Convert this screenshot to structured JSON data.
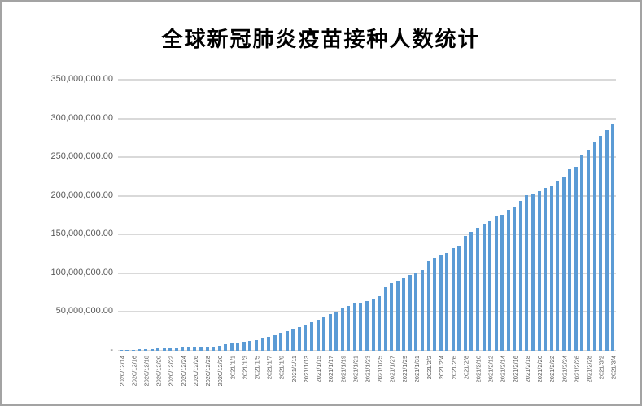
{
  "window": {
    "background_color": "#ffffff",
    "border_color": "#a3a3a3"
  },
  "chart_data": {
    "type": "bar",
    "title": "全球新冠肺炎疫苗接种人数统计",
    "xlabel": "",
    "ylabel": "",
    "ylim": [
      0,
      350000000
    ],
    "y_tick_interval": 50000000,
    "y_tick_labels": [
      "350,000,000.00",
      "300,000,000.00",
      "250,000,000.00",
      "200,000,000.00",
      "150,000,000.00",
      "100,000,000.00",
      "50,000,000.00",
      "-"
    ],
    "x_label_every": 2,
    "grid": "horizontal",
    "legend": "none",
    "bar_color": "#5b9bd5",
    "gridline_color": "#d9d9d9",
    "axis_label_color": "#595959",
    "categories": [
      "2020/12/14",
      "2020/12/15",
      "2020/12/16",
      "2020/12/17",
      "2020/12/18",
      "2020/12/19",
      "2020/12/20",
      "2020/12/21",
      "2020/12/22",
      "2020/12/23",
      "2020/12/24",
      "2020/12/25",
      "2020/12/26",
      "2020/12/27",
      "2020/12/28",
      "2020/12/29",
      "2020/12/30",
      "2020/12/31",
      "2021/1/1",
      "2021/1/2",
      "2021/1/3",
      "2021/1/4",
      "2021/1/5",
      "2021/1/6",
      "2021/1/7",
      "2021/1/8",
      "2021/1/9",
      "2021/1/10",
      "2021/1/11",
      "2021/1/12",
      "2021/1/13",
      "2021/1/14",
      "2021/1/15",
      "2021/1/16",
      "2021/1/17",
      "2021/1/18",
      "2021/1/19",
      "2021/1/20",
      "2021/1/21",
      "2021/1/22",
      "2021/1/23",
      "2021/1/24",
      "2021/1/25",
      "2021/1/26",
      "2021/1/27",
      "2021/1/28",
      "2021/1/29",
      "2021/1/30",
      "2021/1/31",
      "2021/2/1",
      "2021/2/2",
      "2021/2/3",
      "2021/2/4",
      "2021/2/5",
      "2021/2/6",
      "2021/2/7",
      "2021/2/8",
      "2021/2/9",
      "2021/2/10",
      "2021/2/11",
      "2021/2/12",
      "2021/2/13",
      "2021/2/14",
      "2021/2/15",
      "2021/2/16",
      "2021/2/17",
      "2021/2/18",
      "2021/2/19",
      "2021/2/20",
      "2021/2/21",
      "2021/2/22",
      "2021/2/23",
      "2021/2/24",
      "2021/2/25",
      "2021/2/26",
      "2021/2/27",
      "2021/2/28",
      "2021/3/1",
      "2021/3/2",
      "2021/3/3",
      "2021/3/4"
    ],
    "values": [
      600000,
      1000000,
      1500000,
      1900000,
      2300000,
      2600000,
      2900000,
      3100000,
      3300000,
      3600000,
      3900000,
      4100000,
      4300000,
      4600000,
      5000000,
      5800000,
      6800000,
      8000000,
      9300000,
      10500000,
      11700000,
      12700000,
      14000000,
      16000000,
      18000000,
      20500000,
      23000000,
      25500000,
      28000000,
      30500000,
      33000000,
      36500000,
      40000000,
      43500000,
      47000000,
      51000000,
      55000000,
      58000000,
      60500000,
      62500000,
      64500000,
      66000000,
      70500000,
      82000000,
      87000000,
      90500000,
      94000000,
      97500000,
      100000000,
      104000000,
      116000000,
      119500000,
      124000000,
      126000000,
      132500000,
      136000000,
      148000000,
      153000000,
      158500000,
      164000000,
      167000000,
      173500000,
      176000000,
      182000000,
      185500000,
      193500000,
      200500000,
      203000000,
      206000000,
      210000000,
      213500000,
      220000000,
      225000000,
      234500000,
      237500000,
      253000000,
      260000000,
      270500000,
      277500000,
      284500000,
      293500000
    ]
  }
}
